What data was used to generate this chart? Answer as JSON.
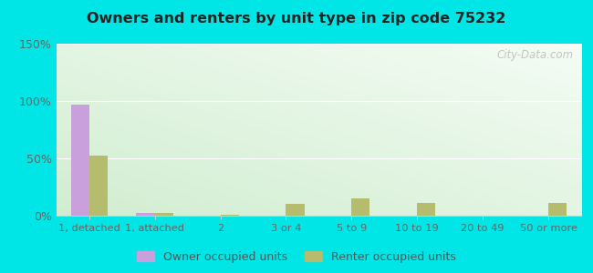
{
  "title": "Owners and renters by unit type in zip code 75232",
  "categories": [
    "1, detached",
    "1, attached",
    "2",
    "3 or 4",
    "5 to 9",
    "10 to 19",
    "20 to 49",
    "50 or more"
  ],
  "owner_values": [
    97,
    2,
    0,
    0,
    0,
    0,
    0,
    0
  ],
  "renter_values": [
    52,
    2,
    1,
    10,
    15,
    11,
    0,
    11
  ],
  "owner_color": "#c9a0dc",
  "renter_color": "#b5bc6e",
  "ylim": [
    0,
    150
  ],
  "yticks": [
    0,
    50,
    100,
    150
  ],
  "ytick_labels": [
    "0%",
    "50%",
    "100%",
    "150%"
  ],
  "background_outer": "#00e5e5",
  "legend_owner": "Owner occupied units",
  "legend_renter": "Renter occupied units",
  "watermark": "City-Data.com",
  "bar_width": 0.28
}
